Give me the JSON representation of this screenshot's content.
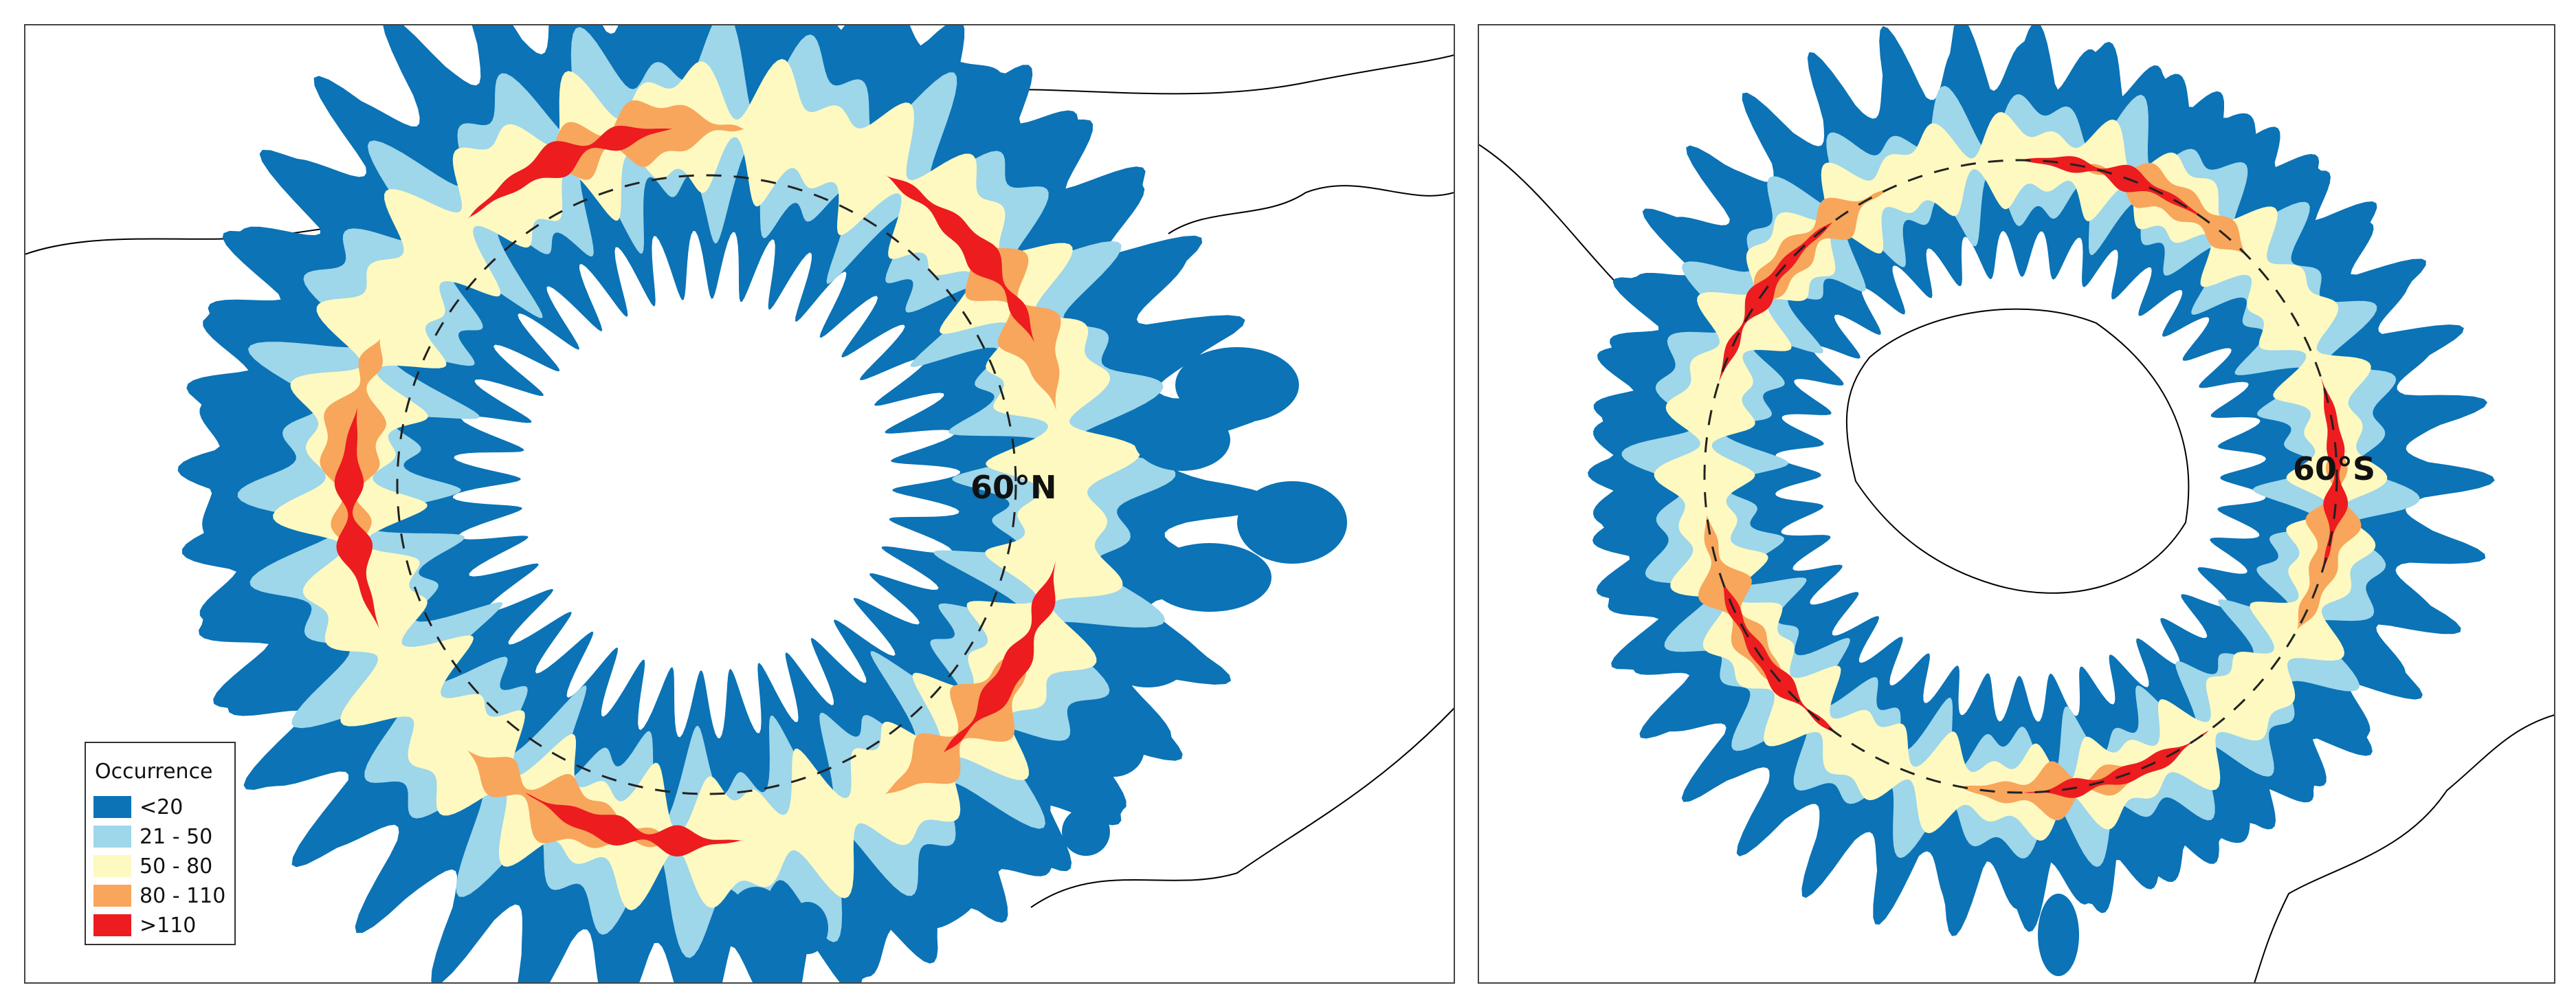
{
  "panels": [
    {
      "label": "60°N"
    },
    {
      "label": "60°S"
    }
  ],
  "legend": {
    "title": "Occurrence",
    "entries": [
      {
        "label": "<20",
        "color": "#0b73b6"
      },
      {
        "label": "21 - 50",
        "color": "#9ed6ea"
      },
      {
        "label": "50 - 80",
        "color": "#fdf9c0"
      },
      {
        "label": "80 - 110",
        "color": "#f7a65c"
      },
      {
        "label": ">110",
        "color": "#ec1c1f"
      }
    ]
  }
}
